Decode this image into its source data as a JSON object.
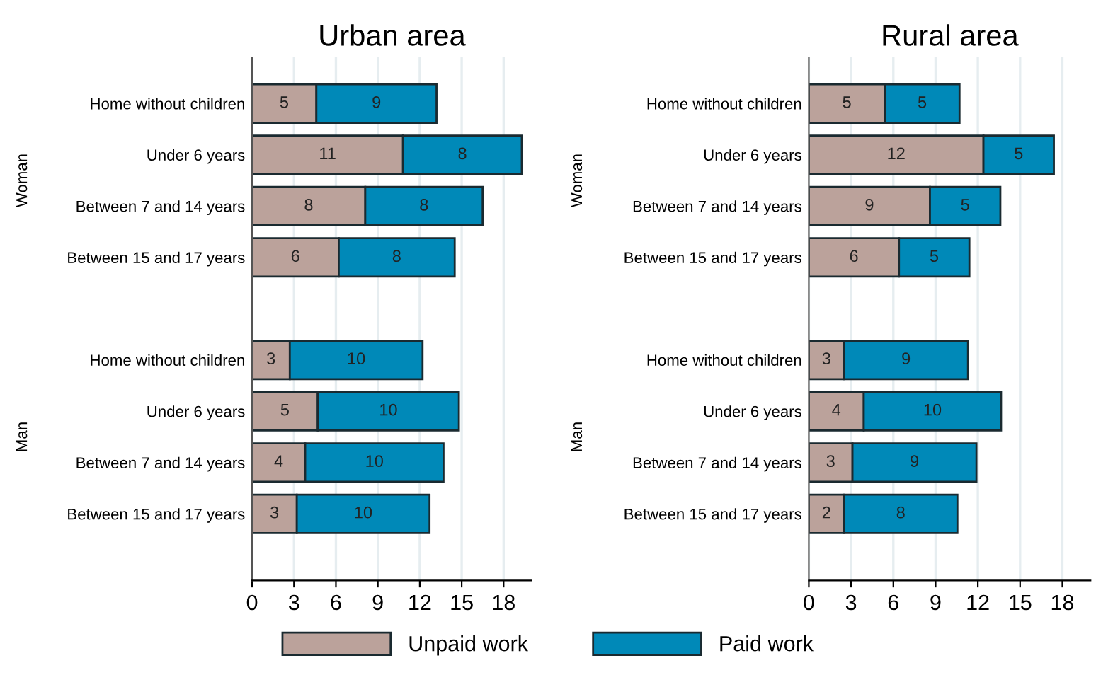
{
  "chart_data": [
    {
      "type": "bar",
      "title": "Urban area",
      "orientation": "horizontal",
      "stacked": true,
      "grid": "x",
      "legend": "bottom",
      "categories": [
        "Home without children",
        "Under 6 years",
        "Between 7 and 14 years",
        "Between 15 and 17 years",
        null,
        "Home without children",
        "Under 6 years",
        "Between 7 and 14 years",
        "Between 15 and 17 years"
      ],
      "series": [
        {
          "name": "Unpaid work",
          "color": "#bba29b",
          "values": [
            4.6,
            10.8,
            8.1,
            6.2,
            null,
            2.7,
            4.7,
            3.8,
            3.2
          ],
          "value_labels": [
            "5",
            "11",
            "8",
            "6",
            null,
            "3",
            "5",
            "4",
            "3"
          ]
        },
        {
          "name": "Paid work",
          "color": "#0089b8",
          "values": [
            8.6,
            8.5,
            8.4,
            8.3,
            null,
            9.5,
            10.1,
            9.9,
            9.5
          ],
          "value_labels": [
            "9",
            "8",
            "8",
            "8",
            null,
            "10",
            "10",
            "10",
            "10"
          ]
        }
      ],
      "xlim": [
        0,
        20
      ],
      "xticks": [
        0,
        3,
        6,
        9,
        12,
        15,
        18
      ],
      "annotations": [
        "Woman",
        "Man"
      ]
    },
    {
      "type": "bar",
      "title": "Rural area",
      "orientation": "horizontal",
      "stacked": true,
      "grid": "x",
      "categories": [
        "Home without children",
        "Under 6 years",
        "Between 7 and 14 years",
        "Between 15 and 17 years",
        null,
        "Home without children",
        "Under 6 years",
        "Between 7 and 14 years",
        "Between 15 and 17 years"
      ],
      "series": [
        {
          "color": "#bba29b",
          "values": [
            5.4,
            12.4,
            8.6,
            6.4,
            null,
            2.5,
            3.9,
            3.1,
            2.5
          ],
          "value_labels": [
            "5",
            "12",
            "9",
            "6",
            null,
            "3",
            "4",
            "3",
            "2"
          ]
        },
        {
          "color": "#0089b8",
          "values": [
            5.3,
            5.0,
            5.0,
            5.0,
            null,
            8.8,
            9.75,
            8.8,
            8.05
          ],
          "value_labels": [
            "5",
            "5",
            "5",
            "5",
            null,
            "9",
            "10",
            "9",
            "8"
          ]
        }
      ],
      "xlim": [
        0,
        20
      ],
      "xticks": [
        0,
        3,
        6,
        9,
        12,
        15,
        18
      ],
      "annotations": [
        "Woman",
        "Man"
      ]
    }
  ]
}
